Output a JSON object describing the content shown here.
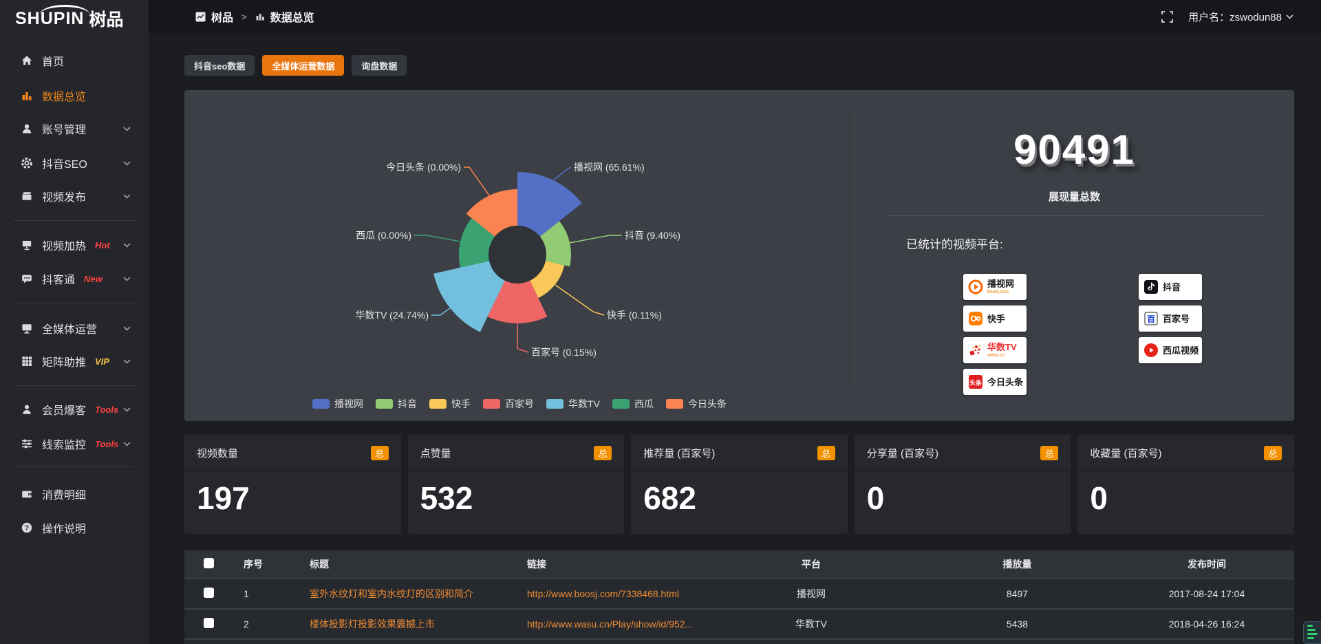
{
  "colors": {
    "accent_orange": "#e8750e",
    "badge_orange": "#f39100",
    "active_menu": "#f08418",
    "hot_red": "#ff4040",
    "vip_yellow": "#f6c343",
    "link_orange": "#f08c32",
    "panel_bg": "#3c3f45",
    "page_bg": "#1b1d20"
  },
  "topbar": {
    "breadcrumb": {
      "root": "树品",
      "separator": ">",
      "current": "数据总览"
    },
    "username": "用户名：zswodun88"
  },
  "logo": {
    "en": "SHUPIN",
    "cn": "树品"
  },
  "sidebar": {
    "items": [
      {
        "label": "首页",
        "badge": ""
      },
      {
        "label": "数据总览",
        "badge": ""
      },
      {
        "label": "账号管理",
        "badge": ""
      },
      {
        "label": "抖音SEO",
        "badge": ""
      },
      {
        "label": "视频发布",
        "badge": ""
      },
      {
        "label": "视频加热",
        "badge": "Hot"
      },
      {
        "label": "抖客通",
        "badge": "New"
      },
      {
        "label": "全媒体运营",
        "badge": ""
      },
      {
        "label": "矩阵助推",
        "badge": "VIP"
      },
      {
        "label": "会员爆客",
        "badge": "Tools"
      },
      {
        "label": "线索监控",
        "badge": "Tools"
      },
      {
        "label": "消费明细",
        "badge": ""
      },
      {
        "label": "操作说明",
        "badge": ""
      }
    ]
  },
  "tabs": [
    {
      "label": "抖音seo数据",
      "active": false
    },
    {
      "label": "全媒体运营数据",
      "active": true
    },
    {
      "label": "询盘数据",
      "active": false
    }
  ],
  "chart_data": {
    "type": "pie",
    "subtype": "nightingale-rose",
    "title": "展现量总数",
    "total": 90491,
    "legend_position": "bottom-center",
    "center": [
      484,
      239
    ],
    "inner_radius": 42,
    "start_angle_deg": 0,
    "slice_angle_deg": 51.4286,
    "series": [
      {
        "name": "播视网",
        "percent": 65.61,
        "color": "#5470c6",
        "radius": 120
      },
      {
        "name": "抖音",
        "percent": 9.4,
        "color": "#91cc75",
        "radius": 78
      },
      {
        "name": "快手",
        "percent": 0.11,
        "color": "#fac858",
        "radius": 70
      },
      {
        "name": "百家号",
        "percent": 0.15,
        "color": "#ee6666",
        "radius": 100
      },
      {
        "name": "华数TV",
        "percent": 24.74,
        "color": "#73c0de",
        "radius": 125
      },
      {
        "name": "西瓜",
        "percent": 0.0,
        "color": "#3ba272",
        "radius": 85
      },
      {
        "name": "今日头条",
        "percent": 0.0,
        "color": "#fc8452",
        "radius": 95
      }
    ],
    "callout_labels": [
      {
        "series": 0,
        "anchor": "start",
        "x": 566,
        "y": 112,
        "line": "537,131 552,118 562,112"
      },
      {
        "series": 1,
        "anchor": "start",
        "x": 640,
        "y": 211,
        "line": "560,222 618,211 636,211"
      },
      {
        "series": 2,
        "anchor": "start",
        "x": 614,
        "y": 327,
        "line": "539,283 594,322 610,327"
      },
      {
        "series": 3,
        "anchor": "start",
        "x": 504,
        "y": 381,
        "line": "484,339 484,376 500,381"
      },
      {
        "series": 4,
        "anchor": "end",
        "x": 355,
        "y": 327,
        "line": "386,317 372,327 359,327"
      },
      {
        "series": 5,
        "anchor": "end",
        "x": 330,
        "y": 211,
        "line": "401,220 352,211 334,211"
      },
      {
        "series": 6,
        "anchor": "end",
        "x": 402,
        "y": 112,
        "line": "443,153 414,112 406,112"
      }
    ]
  },
  "right_panel": {
    "total_value": "90491",
    "total_label": "展现量总数",
    "platforms_label": "已统计的视频平台:",
    "platforms": [
      {
        "name": "播视网",
        "sub": "boosj.com"
      },
      {
        "name": "抖音",
        "sub": ""
      },
      {
        "name": "快手",
        "sub": ""
      },
      {
        "name": "百家号",
        "sub": ""
      },
      {
        "name": "华数TV",
        "sub": "wasu.cn"
      },
      {
        "name": "西瓜视频",
        "sub": ""
      },
      {
        "name": "今日头条",
        "sub": ""
      }
    ]
  },
  "stat_cards": [
    {
      "label": "视频数量",
      "badge": "总",
      "value": "197"
    },
    {
      "label": "点赞量",
      "badge": "总",
      "value": "532"
    },
    {
      "label": "推荐量 (百家号)",
      "badge": "总",
      "value": "682"
    },
    {
      "label": "分享量 (百家号)",
      "badge": "总",
      "value": "0"
    },
    {
      "label": "收藏量 (百家号)",
      "badge": "总",
      "value": "0"
    }
  ],
  "table": {
    "headers": [
      "序号",
      "标题",
      "链接",
      "平台",
      "播放量",
      "发布时间"
    ],
    "rows": [
      {
        "index": "1",
        "title": "室外水纹灯和室内水纹灯的区别和简介",
        "link": "http://www.boosj.com/7338468.html",
        "platform": "播视网",
        "plays": "8497",
        "published": "2017-08-24 17:04"
      },
      {
        "index": "2",
        "title": "楼体投影灯投影效果震撼上市",
        "link": "http://www.wasu.cn/Play/show/id/952...",
        "platform": "华数TV",
        "plays": "5438",
        "published": "2018-04-26 16:24"
      }
    ]
  }
}
